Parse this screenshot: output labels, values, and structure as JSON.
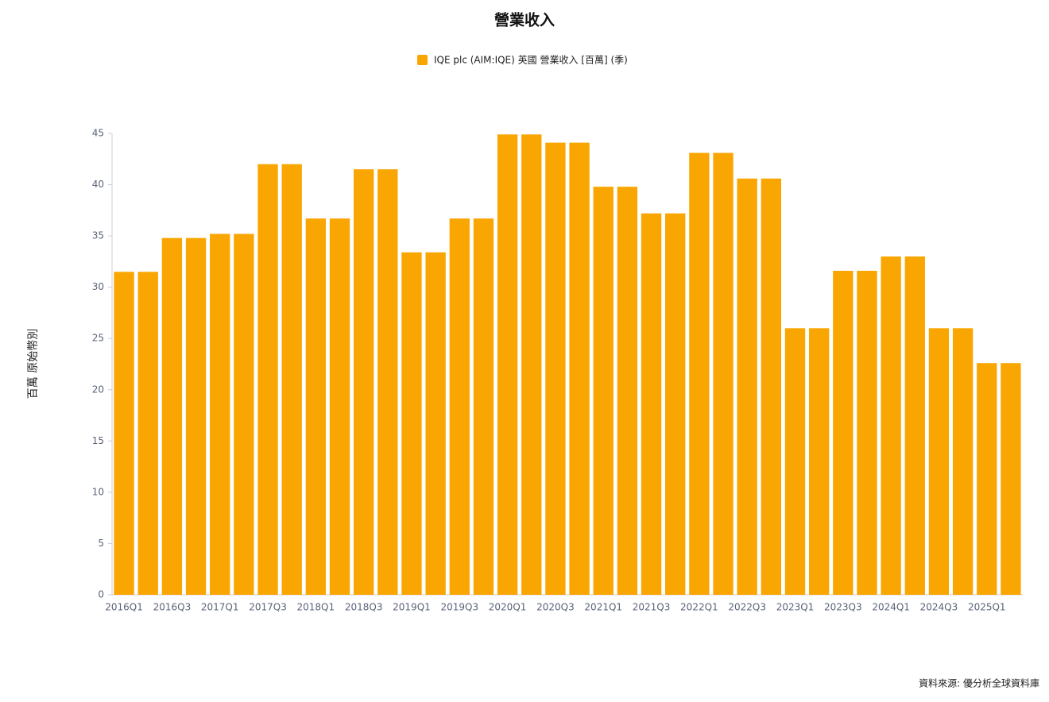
{
  "chart_data": {
    "type": "bar",
    "title": "營業收入",
    "legend_label": "IQE plc (AIM:IQE) 英國 營業收入 [百萬] (季)",
    "y_label": "百萬 原始幣別",
    "source": "資料來源: 優分析全球資料庫",
    "color": "#f9a602",
    "categories": [
      "2016Q1",
      null,
      "2016Q3",
      null,
      "2017Q1",
      null,
      "2017Q3",
      null,
      "2018Q1",
      null,
      "2018Q3",
      null,
      "2019Q1",
      null,
      "2019Q3",
      null,
      "2020Q1",
      null,
      "2020Q3",
      null,
      "2021Q1",
      null,
      "2021Q3",
      null,
      "2022Q1",
      null,
      "2022Q3",
      null,
      "2023Q1",
      null,
      "2023Q3",
      null,
      "2024Q1",
      null,
      "2024Q3",
      null,
      "2025Q1",
      null
    ],
    "values": [
      31.5,
      31.5,
      34.8,
      34.8,
      35.2,
      35.2,
      42,
      42,
      36.7,
      36.7,
      41.5,
      41.5,
      33.4,
      33.4,
      36.7,
      36.7,
      44.9,
      44.9,
      44.1,
      44.1,
      39.8,
      39.8,
      37.2,
      37.2,
      43.1,
      43.1,
      40.6,
      40.6,
      26,
      26,
      31.6,
      31.6,
      33,
      33,
      26,
      26,
      22.6,
      22.6
    ],
    "ylim": [
      0,
      45
    ],
    "yticks": [
      0,
      5,
      10,
      15,
      20,
      25,
      30,
      35,
      40,
      45
    ]
  }
}
